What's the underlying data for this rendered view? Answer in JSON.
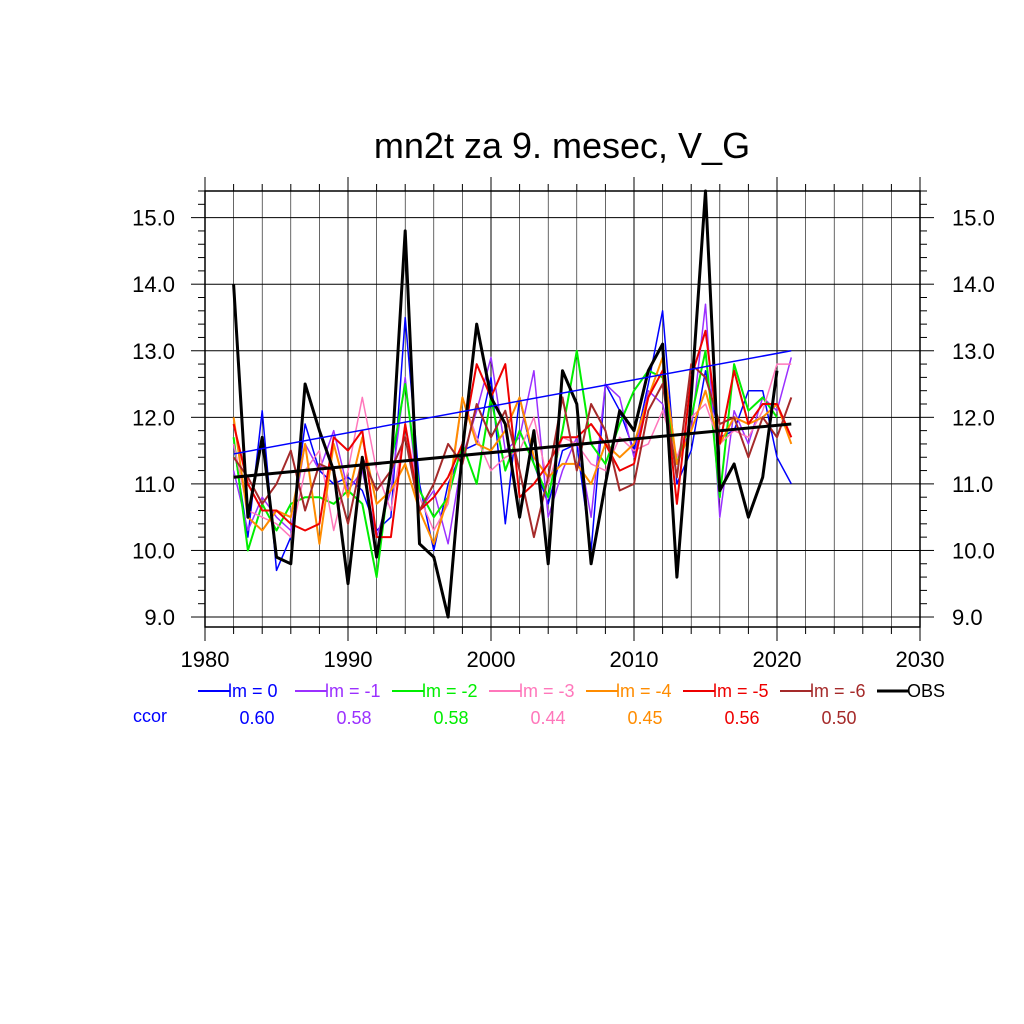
{
  "chart_data": {
    "type": "line",
    "title": "mn2t za 9. mesec, V_G",
    "xlabel": "",
    "ylabel": "",
    "xlim": [
      1980,
      2030
    ],
    "ylim": [
      8.85,
      15.4
    ],
    "xticks": [
      1980,
      1990,
      2000,
      2010,
      2020,
      2030
    ],
    "xtick_labels": [
      "1980",
      "1990",
      "2000",
      "2010",
      "2020",
      "2030"
    ],
    "yticks": [
      9.0,
      10.0,
      11.0,
      12.0,
      13.0,
      14.0,
      15.0
    ],
    "ytick_labels": [
      "9.0",
      "10.0",
      "11.0",
      "12.0",
      "13.0",
      "14.0",
      "15.0"
    ],
    "grid": true,
    "legend_position": "bottom",
    "ccor_label": "ccor",
    "series": [
      {
        "name": "lm = 0",
        "color": "#0000ff",
        "ccor": "0.60",
        "width": 1.5,
        "x": [
          1982,
          1983,
          1984,
          1985,
          1986,
          1987,
          1988,
          1989,
          1990,
          1991,
          1992,
          1993,
          1994,
          1995,
          1996,
          1997,
          1998,
          1999,
          2000,
          2001,
          2002,
          2003,
          2004,
          2005,
          2006,
          2007,
          2008,
          2009,
          2010,
          2011,
          2012,
          2013,
          2014,
          2015,
          2016,
          2017,
          2018,
          2019,
          2020,
          2021
        ],
        "y": [
          11.6,
          10.2,
          12.1,
          9.7,
          10.2,
          11.9,
          11.2,
          11.0,
          11.1,
          10.9,
          10.3,
          10.5,
          13.5,
          11.0,
          10.0,
          11.0,
          11.5,
          11.6,
          12.6,
          10.4,
          12.3,
          11.3,
          10.7,
          11.5,
          11.6,
          10.0,
          12.5,
          12.1,
          11.5,
          12.5,
          13.6,
          11.0,
          11.5,
          12.7,
          11.7,
          11.8,
          12.4,
          12.4,
          11.4,
          11.0
        ],
        "trend": [
          11.45,
          13.0
        ]
      },
      {
        "name": "lm = -1",
        "color": "#9b30ff",
        "ccor": "0.58",
        "width": 1.5,
        "x": [
          1982,
          1983,
          1984,
          1985,
          1986,
          1987,
          1988,
          1989,
          1990,
          1991,
          1992,
          1993,
          1994,
          1995,
          1996,
          1997,
          1998,
          1999,
          2000,
          2001,
          2002,
          2003,
          2004,
          2005,
          2006,
          2007,
          2008,
          2009,
          2010,
          2011,
          2012,
          2013,
          2014,
          2015,
          2016,
          2017,
          2018,
          2019,
          2020,
          2021
        ],
        "y": [
          11.2,
          10.3,
          10.8,
          10.5,
          10.3,
          11.6,
          11.2,
          11.8,
          10.9,
          11.2,
          10.2,
          10.9,
          12.6,
          10.6,
          10.9,
          10.1,
          11.4,
          12.1,
          12.9,
          11.5,
          11.7,
          12.7,
          10.5,
          11.2,
          11.7,
          10.5,
          12.5,
          12.3,
          11.4,
          12.4,
          12.2,
          11.4,
          11.8,
          13.7,
          10.5,
          12.1,
          11.6,
          12.3,
          12.1,
          12.9
        ]
      },
      {
        "name": "lm = -2",
        "color": "#00ee00",
        "ccor": "0.58",
        "width": 2,
        "x": [
          1982,
          1983,
          1984,
          1985,
          1986,
          1987,
          1988,
          1989,
          1990,
          1991,
          1992,
          1993,
          1994,
          1995,
          1996,
          1997,
          1998,
          1999,
          2000,
          2001,
          2002,
          2003,
          2004,
          2005,
          2006,
          2007,
          2008,
          2009,
          2010,
          2011,
          2012,
          2013,
          2014,
          2015,
          2016,
          2017,
          2018,
          2019,
          2020
        ],
        "y": [
          11.7,
          10.0,
          10.7,
          10.3,
          10.7,
          10.8,
          10.8,
          10.7,
          10.9,
          10.7,
          9.6,
          11.3,
          12.5,
          10.9,
          10.5,
          10.8,
          11.6,
          11.0,
          12.3,
          11.2,
          11.8,
          11.3,
          10.8,
          11.8,
          13.0,
          11.6,
          11.3,
          11.9,
          12.4,
          12.7,
          12.6,
          11.3,
          12.0,
          13.0,
          10.8,
          12.8,
          12.1,
          12.3,
          12.0
        ]
      },
      {
        "name": "lm = -3",
        "color": "#ff77bb",
        "ccor": "0.44",
        "width": 1.5,
        "x": [
          1982,
          1983,
          1984,
          1985,
          1986,
          1987,
          1988,
          1989,
          1990,
          1991,
          1992,
          1993,
          1994,
          1995,
          1996,
          1997,
          1998,
          1999,
          2000,
          2001,
          2002,
          2003,
          2004,
          2005,
          2006,
          2007,
          2008,
          2009,
          2010,
          2011,
          2012,
          2013,
          2014,
          2015,
          2016,
          2017,
          2018,
          2019,
          2020,
          2021
        ],
        "y": [
          11.6,
          10.6,
          10.5,
          10.4,
          10.2,
          11.2,
          11.5,
          10.3,
          11.2,
          12.3,
          11.2,
          10.6,
          11.9,
          10.8,
          10.3,
          10.7,
          12.3,
          11.7,
          11.2,
          11.4,
          11.5,
          12.0,
          11.0,
          11.7,
          11.6,
          11.3,
          11.2,
          11.7,
          11.5,
          11.6,
          12.1,
          11.4,
          12.0,
          12.2,
          11.6,
          11.8,
          11.7,
          12.1,
          12.8,
          12.8
        ]
      },
      {
        "name": "lm = -4",
        "color": "#ff8c00",
        "ccor": "0.45",
        "width": 2,
        "x": [
          1982,
          1983,
          1984,
          1985,
          1986,
          1987,
          1988,
          1989,
          1990,
          1991,
          1992,
          1993,
          1994,
          1995,
          1996,
          1997,
          1998,
          1999,
          2000,
          2001,
          2002,
          2003,
          2004,
          2005,
          2006,
          2007,
          2008,
          2009,
          2010,
          2011,
          2012,
          2013,
          2014,
          2015,
          2016,
          2017,
          2018,
          2019,
          2020,
          2021
        ],
        "y": [
          12.0,
          10.5,
          10.3,
          10.6,
          10.5,
          11.6,
          10.1,
          11.6,
          10.8,
          11.7,
          10.7,
          10.9,
          11.3,
          10.6,
          10.1,
          10.8,
          12.3,
          11.6,
          11.5,
          11.8,
          12.3,
          11.4,
          11.1,
          11.3,
          11.3,
          11.0,
          11.6,
          11.4,
          11.6,
          12.3,
          12.9,
          11.3,
          11.8,
          12.4,
          11.6,
          12.0,
          11.9,
          12.0,
          12.2,
          11.6
        ]
      },
      {
        "name": "lm = -5",
        "color": "#ee0000",
        "ccor": "0.56",
        "width": 2,
        "x": [
          1982,
          1983,
          1984,
          1985,
          1986,
          1987,
          1988,
          1989,
          1990,
          1991,
          1992,
          1993,
          1994,
          1995,
          1996,
          1997,
          1998,
          1999,
          2000,
          2001,
          2002,
          2003,
          2004,
          2005,
          2006,
          2007,
          2008,
          2009,
          2010,
          2011,
          2012,
          2013,
          2014,
          2015,
          2016,
          2017,
          2018,
          2019,
          2020,
          2021
        ],
        "y": [
          11.9,
          11.0,
          10.6,
          10.6,
          10.4,
          10.3,
          10.4,
          11.7,
          11.5,
          11.8,
          10.2,
          10.2,
          11.9,
          10.6,
          10.8,
          11.1,
          11.6,
          12.8,
          12.3,
          12.8,
          10.8,
          11.0,
          11.3,
          11.7,
          11.7,
          11.9,
          11.6,
          11.2,
          11.3,
          12.3,
          12.7,
          10.7,
          12.6,
          13.3,
          11.6,
          12.7,
          11.9,
          12.2,
          12.2,
          11.7
        ]
      },
      {
        "name": "lm = -6",
        "color": "#a52a2a",
        "ccor": "0.50",
        "width": 2,
        "x": [
          1982,
          1983,
          1984,
          1985,
          1986,
          1987,
          1988,
          1989,
          1990,
          1991,
          1992,
          1993,
          1994,
          1995,
          1996,
          1997,
          1998,
          1999,
          2000,
          2001,
          2002,
          2003,
          2004,
          2005,
          2006,
          2007,
          2008,
          2009,
          2010,
          2011,
          2012,
          2013,
          2014,
          2015,
          2016,
          2017,
          2018,
          2019,
          2020,
          2021
        ],
        "y": [
          11.4,
          11.1,
          10.7,
          11.0,
          11.5,
          10.6,
          11.3,
          11.2,
          10.4,
          11.4,
          10.9,
          11.2,
          11.7,
          10.6,
          11.0,
          11.6,
          11.3,
          12.2,
          11.7,
          12.1,
          11.2,
          10.2,
          11.1,
          12.3,
          11.2,
          12.2,
          11.8,
          10.9,
          11.0,
          12.1,
          12.5,
          11.1,
          12.8,
          12.6,
          11.9,
          12.0,
          11.4,
          12.0,
          11.7,
          12.3
        ]
      },
      {
        "name": "OBS",
        "color": "#000000",
        "ccor": "",
        "width": 3,
        "x": [
          1982,
          1983,
          1984,
          1985,
          1986,
          1987,
          1988,
          1989,
          1990,
          1991,
          1992,
          1993,
          1994,
          1995,
          1996,
          1997,
          1998,
          1999,
          2000,
          2001,
          2002,
          2003,
          2004,
          2005,
          2006,
          2007,
          2008,
          2009,
          2010,
          2011,
          2012,
          2013,
          2014,
          2015,
          2016,
          2017,
          2018,
          2019,
          2020
        ],
        "y": [
          14.0,
          10.5,
          11.7,
          9.9,
          9.8,
          12.5,
          11.8,
          11.2,
          9.5,
          11.4,
          9.9,
          11.2,
          14.8,
          10.1,
          9.9,
          9.0,
          11.5,
          13.4,
          12.3,
          11.9,
          10.5,
          11.8,
          9.8,
          12.7,
          12.2,
          9.8,
          11.0,
          12.1,
          11.8,
          12.7,
          13.1,
          9.6,
          12.3,
          15.4,
          10.9,
          11.3,
          10.5,
          11.1,
          12.7
        ],
        "trend": [
          11.1,
          11.9
        ]
      }
    ]
  }
}
